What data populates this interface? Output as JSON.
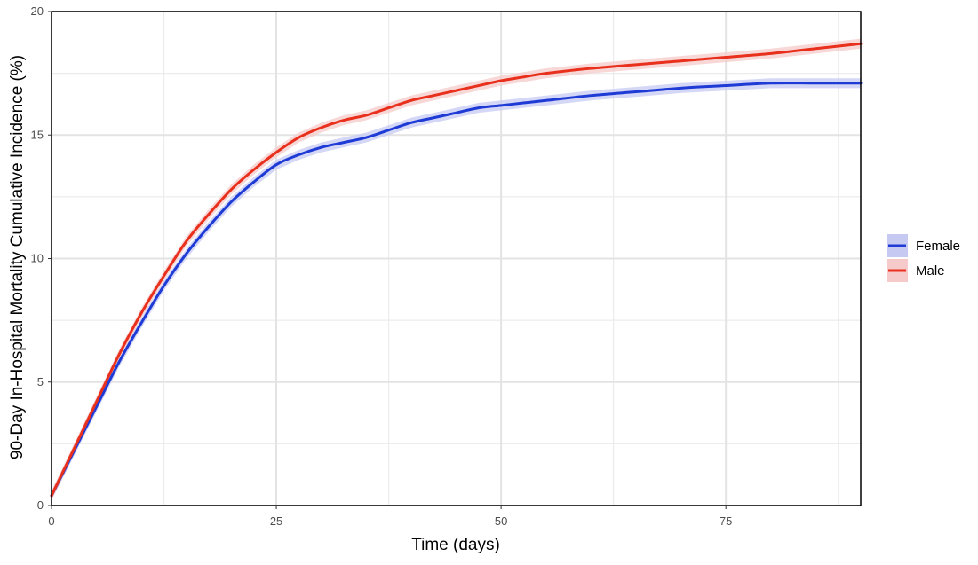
{
  "chart_data": {
    "type": "line",
    "title": "",
    "xlabel": "Time (days)",
    "ylabel": "90-Day In-Hospital Mortality Cumulative Incidence (%)",
    "xlim": [
      0,
      90
    ],
    "ylim": [
      0,
      20
    ],
    "x_ticks": [
      0,
      25,
      50,
      75
    ],
    "y_ticks": [
      0,
      5,
      10,
      15,
      20
    ],
    "x_tick_labels": [
      "0",
      "25",
      "50",
      "75"
    ],
    "y_tick_labels": [
      "0",
      "5",
      "10",
      "15",
      "20"
    ],
    "grid": true,
    "confidence_band": true,
    "legend_position": "right",
    "series": [
      {
        "name": "Female",
        "color": "#1f3bd6",
        "band_color": "#c6c9f2",
        "x": [
          0,
          2.5,
          5,
          7.5,
          10,
          12.5,
          15,
          17.5,
          20,
          22.5,
          25,
          27.5,
          30,
          32.5,
          35,
          37.5,
          40,
          42.5,
          45,
          47.5,
          50,
          52.5,
          55,
          60,
          65,
          70,
          75,
          80,
          85,
          90
        ],
        "values": [
          0.4,
          2.2,
          4.0,
          5.8,
          7.4,
          8.9,
          10.2,
          11.3,
          12.3,
          13.1,
          13.8,
          14.2,
          14.5,
          14.7,
          14.9,
          15.2,
          15.5,
          15.7,
          15.9,
          16.1,
          16.2,
          16.3,
          16.4,
          16.6,
          16.75,
          16.9,
          17.0,
          17.1,
          17.1,
          17.1
        ],
        "band": 0.2
      },
      {
        "name": "Male",
        "color": "#e8301c",
        "band_color": "#f6caca",
        "x": [
          0,
          2.5,
          5,
          7.5,
          10,
          12.5,
          15,
          17.5,
          20,
          22.5,
          25,
          27.5,
          30,
          32.5,
          35,
          37.5,
          40,
          42.5,
          45,
          47.5,
          50,
          52.5,
          55,
          60,
          65,
          70,
          75,
          80,
          85,
          90
        ],
        "values": [
          0.4,
          2.3,
          4.2,
          6.1,
          7.8,
          9.3,
          10.7,
          11.8,
          12.8,
          13.6,
          14.3,
          14.9,
          15.3,
          15.6,
          15.8,
          16.1,
          16.4,
          16.6,
          16.8,
          17.0,
          17.2,
          17.35,
          17.5,
          17.7,
          17.85,
          18.0,
          18.15,
          18.3,
          18.5,
          18.7
        ],
        "band": 0.2
      }
    ]
  }
}
